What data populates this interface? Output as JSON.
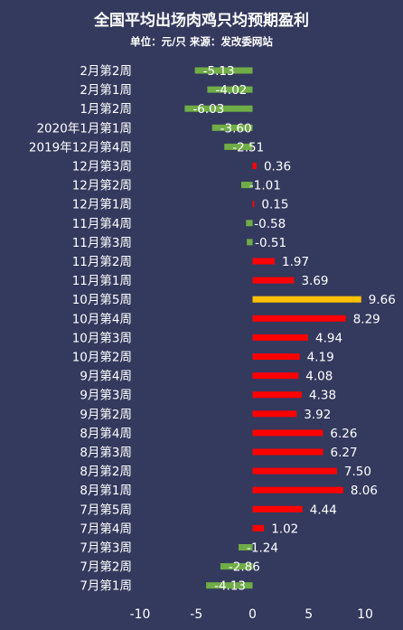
{
  "chart_data": {
    "type": "bar",
    "orientation": "horizontal",
    "title": "全国平均出场肉鸡只均预期盈利",
    "subtitle": "单位：元/只 来源：发改委网站",
    "categories": [
      "2月第2周",
      "2月第1周",
      "1月第2周",
      "2020年1月第1周",
      "2019年12月第4周",
      "12月第3周",
      "12月第2周",
      "12月第1周",
      "11月第4周",
      "11月第3周",
      "11月第2周",
      "11月第1周",
      "10月第5周",
      "10月第4周",
      "10月第3周",
      "10月第2周",
      "9月第4周",
      "9月第3周",
      "9月第2周",
      "8月第4周",
      "8月第3周",
      "8月第2周",
      "8月第1周",
      "7月第5周",
      "7月第4周",
      "7月第3周",
      "7月第2周",
      "7月第1周"
    ],
    "values": [
      -5.13,
      -4.02,
      -6.03,
      -3.6,
      -2.51,
      0.36,
      -1.01,
      0.15,
      -0.58,
      -0.51,
      1.97,
      3.69,
      9.66,
      8.29,
      4.94,
      4.19,
      4.08,
      4.38,
      3.92,
      6.26,
      6.27,
      7.5,
      8.06,
      4.44,
      1.02,
      -1.24,
      -2.86,
      -4.13
    ],
    "value_labels": [
      "-5.13",
      "-4.02",
      "-6.03",
      "-3.60",
      "-2.51",
      "0.36",
      "-1.01",
      "0.15",
      "-0.58",
      "-0.51",
      "1.97",
      "3.69",
      "9.66",
      "8.29",
      "4.94",
      "4.19",
      "4.08",
      "4.38",
      "3.92",
      "6.26",
      "6.27",
      "7.50",
      "8.06",
      "4.44",
      "1.02",
      "-1.24",
      "-2.86",
      "-4.13"
    ],
    "highlight_category": "10月第5周",
    "xlim": [
      -10,
      10
    ],
    "xticks": [
      "-10",
      "-5",
      "0",
      "5",
      "10"
    ],
    "xtick_values": [
      -10,
      -5,
      0,
      5,
      10
    ],
    "grid": false,
    "colors": {
      "positive": "#ff0000",
      "negative": "#70ad47",
      "highlight": "#ffc000",
      "background": "#343a5e"
    }
  }
}
